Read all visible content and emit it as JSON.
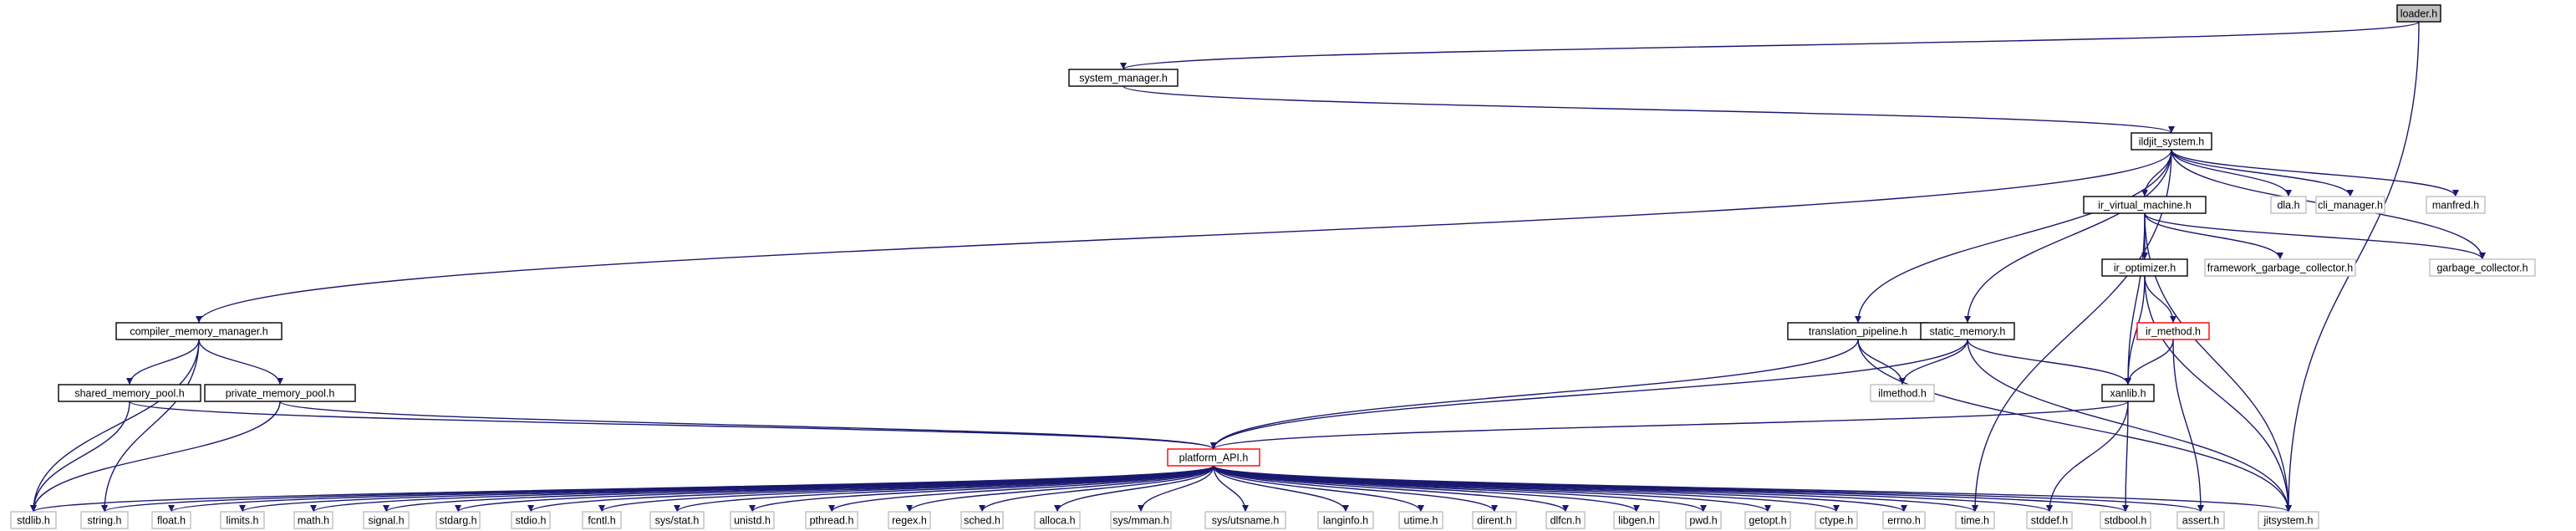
{
  "colors": {
    "edge": "#191970",
    "current_fill": "#bfbfbf",
    "box": "#000000",
    "leaf_box": "#bfbfbf",
    "truncated_box": "#ff0000"
  },
  "graph": {
    "current": "n_loader",
    "nodes": [
      {
        "id": "n_loader",
        "label": "loader.h",
        "kind": "current"
      },
      {
        "id": "n_sysman",
        "label": "system_manager.h",
        "kind": "box"
      },
      {
        "id": "n_ildjit",
        "label": "ildjit_system.h",
        "kind": "box"
      },
      {
        "id": "n_dla",
        "label": "dla.h",
        "kind": "leaf"
      },
      {
        "id": "n_climan",
        "label": "cli_manager.h",
        "kind": "leaf"
      },
      {
        "id": "n_manfred",
        "label": "manfred.h",
        "kind": "leaf"
      },
      {
        "id": "n_irvm",
        "label": "ir_virtual_machine.h",
        "kind": "box"
      },
      {
        "id": "n_fwgc",
        "label": "framework_garbage_collector.h",
        "kind": "leaf"
      },
      {
        "id": "n_gc",
        "label": "garbage_collector.h",
        "kind": "leaf"
      },
      {
        "id": "n_iropt",
        "label": "ir_optimizer.h",
        "kind": "box"
      },
      {
        "id": "n_irmethod",
        "label": "ir_method.h",
        "kind": "truncated"
      },
      {
        "id": "n_cmm",
        "label": "compiler_memory_manager.h",
        "kind": "box"
      },
      {
        "id": "n_trans",
        "label": "translation_pipeline.h",
        "kind": "box"
      },
      {
        "id": "n_static",
        "label": "static_memory.h",
        "kind": "box"
      },
      {
        "id": "n_smp",
        "label": "shared_memory_pool.h",
        "kind": "box"
      },
      {
        "id": "n_pmp",
        "label": "private_memory_pool.h",
        "kind": "box"
      },
      {
        "id": "n_ilmethod",
        "label": "ilmethod.h",
        "kind": "leaf"
      },
      {
        "id": "n_xanlib",
        "label": "xanlib.h",
        "kind": "box"
      },
      {
        "id": "n_platform",
        "label": "platform_API.h",
        "kind": "truncated"
      },
      {
        "id": "n_stdlib",
        "label": "stdlib.h",
        "kind": "leaf"
      },
      {
        "id": "n_string",
        "label": "string.h",
        "kind": "leaf"
      },
      {
        "id": "n_float",
        "label": "float.h",
        "kind": "leaf"
      },
      {
        "id": "n_limits",
        "label": "limits.h",
        "kind": "leaf"
      },
      {
        "id": "n_math",
        "label": "math.h",
        "kind": "leaf"
      },
      {
        "id": "n_signal",
        "label": "signal.h",
        "kind": "leaf"
      },
      {
        "id": "n_stdarg",
        "label": "stdarg.h",
        "kind": "leaf"
      },
      {
        "id": "n_stdio",
        "label": "stdio.h",
        "kind": "leaf"
      },
      {
        "id": "n_fcntl",
        "label": "fcntl.h",
        "kind": "leaf"
      },
      {
        "id": "n_sysstat",
        "label": "sys/stat.h",
        "kind": "leaf"
      },
      {
        "id": "n_unistd",
        "label": "unistd.h",
        "kind": "leaf"
      },
      {
        "id": "n_pthread",
        "label": "pthread.h",
        "kind": "leaf"
      },
      {
        "id": "n_regex",
        "label": "regex.h",
        "kind": "leaf"
      },
      {
        "id": "n_sched",
        "label": "sched.h",
        "kind": "leaf"
      },
      {
        "id": "n_alloca",
        "label": "alloca.h",
        "kind": "leaf"
      },
      {
        "id": "n_sysmman",
        "label": "sys/mman.h",
        "kind": "leaf"
      },
      {
        "id": "n_sysutsname",
        "label": "sys/utsname.h",
        "kind": "leaf"
      },
      {
        "id": "n_langinfo",
        "label": "langinfo.h",
        "kind": "leaf"
      },
      {
        "id": "n_utime",
        "label": "utime.h",
        "kind": "leaf"
      },
      {
        "id": "n_dirent",
        "label": "dirent.h",
        "kind": "leaf"
      },
      {
        "id": "n_dlfcn",
        "label": "dlfcn.h",
        "kind": "leaf"
      },
      {
        "id": "n_libgen",
        "label": "libgen.h",
        "kind": "leaf"
      },
      {
        "id": "n_pwd",
        "label": "pwd.h",
        "kind": "leaf"
      },
      {
        "id": "n_getopt",
        "label": "getopt.h",
        "kind": "leaf"
      },
      {
        "id": "n_ctype",
        "label": "ctype.h",
        "kind": "leaf"
      },
      {
        "id": "n_errno",
        "label": "errno.h",
        "kind": "leaf"
      },
      {
        "id": "n_time",
        "label": "time.h",
        "kind": "leaf"
      },
      {
        "id": "n_stddef",
        "label": "stddef.h",
        "kind": "leaf"
      },
      {
        "id": "n_stdbool",
        "label": "stdbool.h",
        "kind": "leaf"
      },
      {
        "id": "n_assert",
        "label": "assert.h",
        "kind": "leaf"
      },
      {
        "id": "n_jitsystem",
        "label": "jitsystem.h",
        "kind": "leaf"
      }
    ],
    "edges": [
      [
        "n_loader",
        "n_sysman"
      ],
      [
        "n_loader",
        "n_jitsystem"
      ],
      [
        "n_sysman",
        "n_ildjit"
      ],
      [
        "n_ildjit",
        "n_dla"
      ],
      [
        "n_ildjit",
        "n_climan"
      ],
      [
        "n_ildjit",
        "n_manfred"
      ],
      [
        "n_ildjit",
        "n_irvm"
      ],
      [
        "n_ildjit",
        "n_gc"
      ],
      [
        "n_ildjit",
        "n_cmm"
      ],
      [
        "n_ildjit",
        "n_trans"
      ],
      [
        "n_ildjit",
        "n_static"
      ],
      [
        "n_ildjit",
        "n_time"
      ],
      [
        "n_irvm",
        "n_fwgc"
      ],
      [
        "n_irvm",
        "n_gc"
      ],
      [
        "n_irvm",
        "n_iropt"
      ],
      [
        "n_irvm",
        "n_xanlib"
      ],
      [
        "n_irvm",
        "n_jitsystem"
      ],
      [
        "n_iropt",
        "n_irmethod"
      ],
      [
        "n_iropt",
        "n_xanlib"
      ],
      [
        "n_iropt",
        "n_jitsystem"
      ],
      [
        "n_irmethod",
        "n_xanlib"
      ],
      [
        "n_irmethod",
        "n_assert"
      ],
      [
        "n_cmm",
        "n_smp"
      ],
      [
        "n_cmm",
        "n_pmp"
      ],
      [
        "n_cmm",
        "n_stdlib"
      ],
      [
        "n_cmm",
        "n_string"
      ],
      [
        "n_smp",
        "n_platform"
      ],
      [
        "n_smp",
        "n_stdlib"
      ],
      [
        "n_pmp",
        "n_platform"
      ],
      [
        "n_pmp",
        "n_stdlib"
      ],
      [
        "n_trans",
        "n_ilmethod"
      ],
      [
        "n_trans",
        "n_platform"
      ],
      [
        "n_trans",
        "n_jitsystem"
      ],
      [
        "n_static",
        "n_ilmethod"
      ],
      [
        "n_static",
        "n_xanlib"
      ],
      [
        "n_static",
        "n_platform"
      ],
      [
        "n_static",
        "n_jitsystem"
      ],
      [
        "n_xanlib",
        "n_platform"
      ],
      [
        "n_xanlib",
        "n_stddef"
      ],
      [
        "n_xanlib",
        "n_stdbool"
      ],
      [
        "n_platform",
        "n_stdlib"
      ],
      [
        "n_platform",
        "n_string"
      ],
      [
        "n_platform",
        "n_float"
      ],
      [
        "n_platform",
        "n_limits"
      ],
      [
        "n_platform",
        "n_math"
      ],
      [
        "n_platform",
        "n_signal"
      ],
      [
        "n_platform",
        "n_stdarg"
      ],
      [
        "n_platform",
        "n_stdio"
      ],
      [
        "n_platform",
        "n_fcntl"
      ],
      [
        "n_platform",
        "n_sysstat"
      ],
      [
        "n_platform",
        "n_unistd"
      ],
      [
        "n_platform",
        "n_pthread"
      ],
      [
        "n_platform",
        "n_regex"
      ],
      [
        "n_platform",
        "n_sched"
      ],
      [
        "n_platform",
        "n_alloca"
      ],
      [
        "n_platform",
        "n_sysmman"
      ],
      [
        "n_platform",
        "n_sysutsname"
      ],
      [
        "n_platform",
        "n_langinfo"
      ],
      [
        "n_platform",
        "n_utime"
      ],
      [
        "n_platform",
        "n_dirent"
      ],
      [
        "n_platform",
        "n_dlfcn"
      ],
      [
        "n_platform",
        "n_libgen"
      ],
      [
        "n_platform",
        "n_pwd"
      ],
      [
        "n_platform",
        "n_getopt"
      ],
      [
        "n_platform",
        "n_ctype"
      ],
      [
        "n_platform",
        "n_errno"
      ],
      [
        "n_platform",
        "n_time"
      ],
      [
        "n_platform",
        "n_stddef"
      ],
      [
        "n_platform",
        "n_stdbool"
      ],
      [
        "n_platform",
        "n_assert"
      ],
      [
        "n_platform",
        "n_jitsystem"
      ]
    ]
  }
}
